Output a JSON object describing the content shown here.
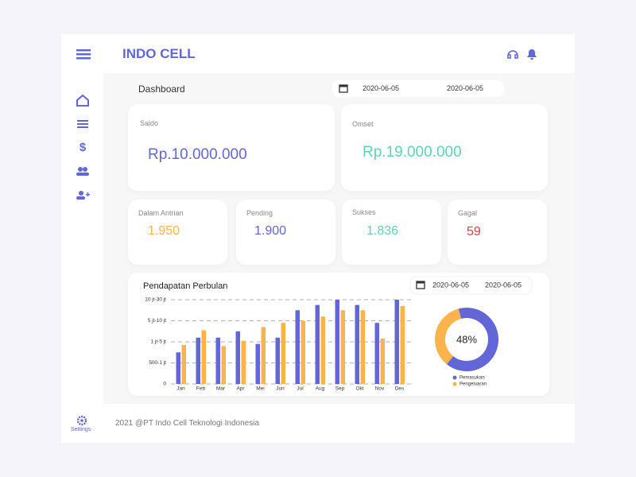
{
  "header": {
    "brand": "INDO CELL"
  },
  "sidebar": {
    "settings": "Settings"
  },
  "dashboard": {
    "title": "Dashboard",
    "date_from": "2020-06-05",
    "date_to": "2020-06-05"
  },
  "cards": [
    {
      "label": "Saldo",
      "value": "Rp.10.000.000"
    },
    {
      "label": "Omset",
      "value": "Rp.19.000.000"
    }
  ],
  "stats": [
    {
      "label": "Dalam Antrian",
      "value": "1.950"
    },
    {
      "label": "Pending",
      "value": "1.900"
    },
    {
      "label": "Sukses",
      "value": "1.836"
    },
    {
      "label": "Gagal",
      "value": "59"
    }
  ],
  "chart_data": [
    {
      "type": "bar",
      "title": "Pendapatan Perbulan",
      "date_from": "2020-06-05",
      "date_to": "2020-06-05",
      "categories": [
        "Jan",
        "Feb",
        "Mar",
        "Apr",
        "Mei",
        "Jun",
        "Jul",
        "Aug",
        "Sep",
        "Okt",
        "Nov",
        "Des"
      ],
      "series": [
        {
          "name": "Pemasukan",
          "color": "#6366d6",
          "values": [
            1.5,
            2.2,
            2.2,
            2.5,
            1.9,
            2.2,
            3.5,
            3.75,
            4,
            3.75,
            2.9,
            4
          ]
        },
        {
          "name": "Pengeluaran",
          "color": "#fbb44c",
          "values": [
            1.85,
            2.55,
            1.8,
            2.05,
            2.7,
            2.9,
            3,
            3.2,
            3.5,
            3.5,
            2.15,
            3.7
          ]
        }
      ],
      "ylim": [
        0,
        4
      ],
      "yticks": [
        0,
        {
          "value": 1,
          "label": "500-1 jt"
        },
        {
          "value": 2,
          "label": "1 jt-5 jt"
        },
        {
          "value": 3,
          "label": "5 jt-10 jt"
        },
        {
          "value": 4,
          "label": "10 jt-30 jt"
        }
      ],
      "grid": true
    },
    {
      "type": "pie",
      "center_label": "48%",
      "categories": [
        "Pemasukan",
        "Pengeluaran"
      ],
      "values": [
        65,
        35
      ],
      "colors": [
        "#6366d6",
        "#fbb44c"
      ]
    }
  ],
  "footer": {
    "text": "2021 @PT Indo Cell Teknologi Indonesia"
  }
}
